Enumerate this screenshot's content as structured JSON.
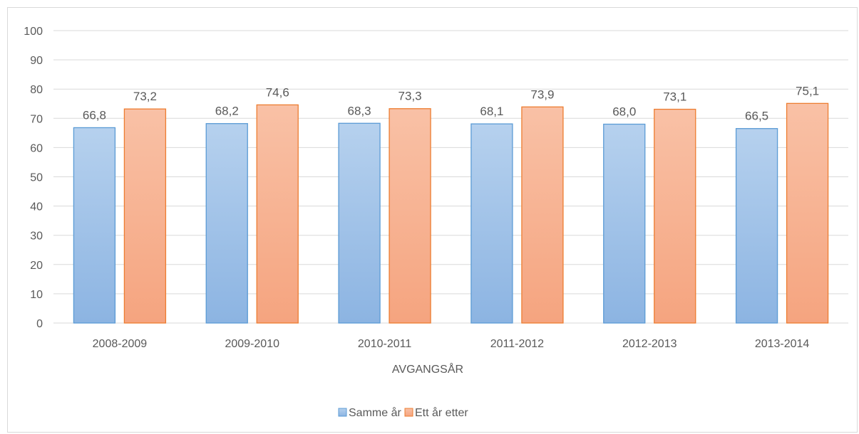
{
  "chart_data": {
    "type": "bar",
    "title": "",
    "xlabel": "AVGANGSÅR",
    "ylabel": "",
    "ylim": [
      0,
      100
    ],
    "yticks": [
      0,
      10,
      20,
      30,
      40,
      50,
      60,
      70,
      80,
      90,
      100
    ],
    "categories": [
      "2008-2009",
      "2009-2010",
      "2010-2011",
      "2011-2012",
      "2012-2013",
      "2013-2014"
    ],
    "series": [
      {
        "name": "Samme år",
        "values": [
          66.8,
          68.2,
          68.3,
          68.1,
          68.0,
          66.5
        ],
        "labels": [
          "66,8",
          "68,2",
          "68,3",
          "68,1",
          "68,0",
          "66,5"
        ],
        "color": "#9dc3e6",
        "border": "#5b9bd5"
      },
      {
        "name": "Ett år etter",
        "values": [
          73.2,
          74.6,
          73.3,
          73.9,
          73.1,
          75.1
        ],
        "labels": [
          "73,2",
          "74,6",
          "73,3",
          "73,9",
          "73,1",
          "75,1"
        ],
        "color": "#f8b594",
        "border": "#ed7d31"
      }
    ],
    "grid": true,
    "legend": "bottom"
  }
}
